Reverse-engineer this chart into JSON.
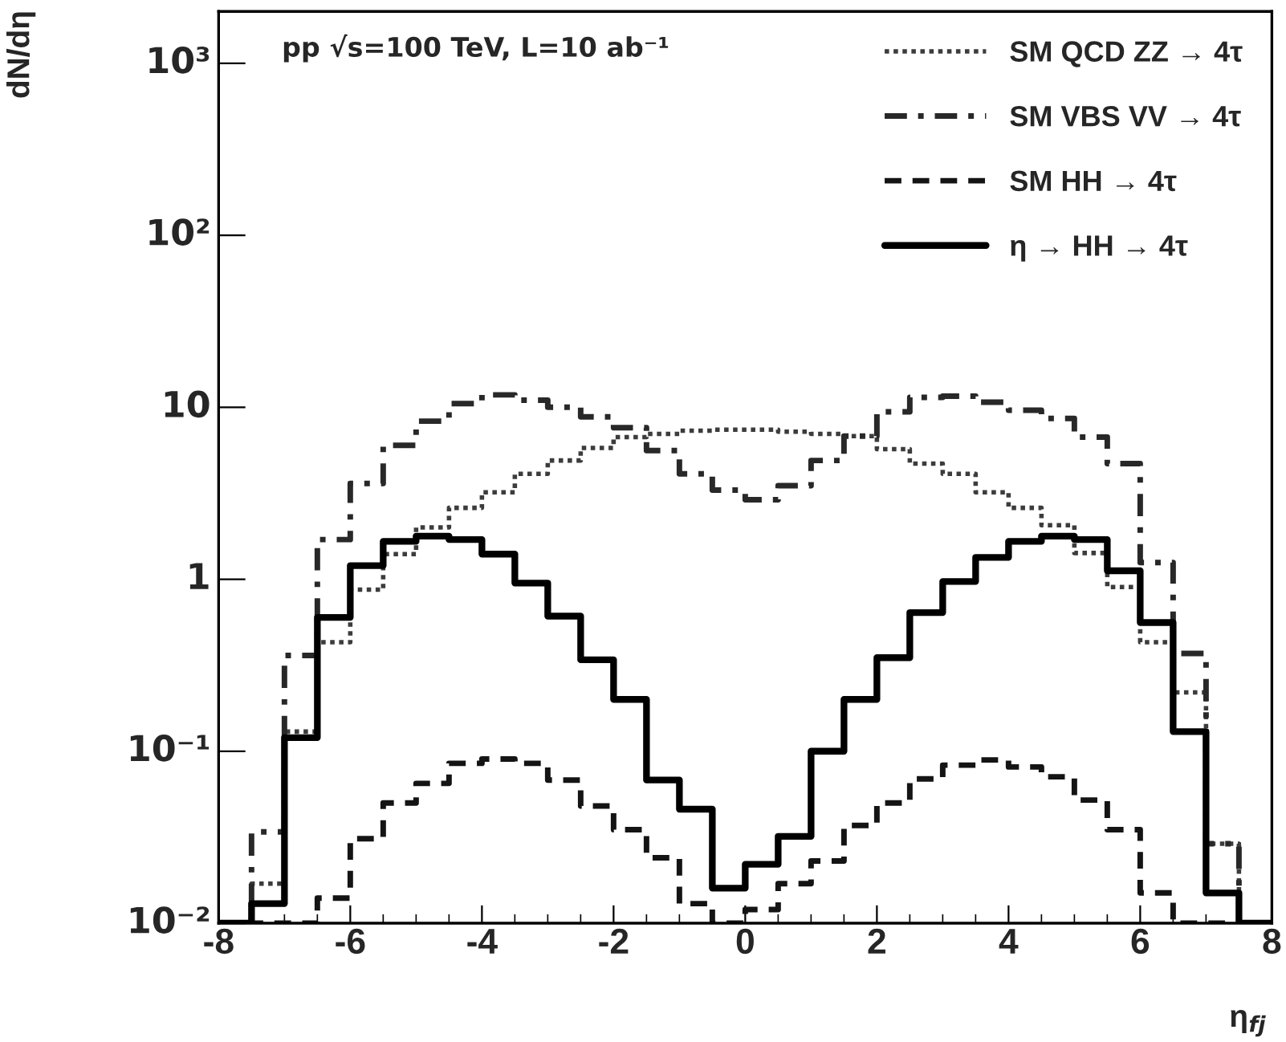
{
  "chart_data": {
    "type": "histogram",
    "xlabel": "η$_{fj}$",
    "ylabel": "dN/dη",
    "annotations": [
      "pp √s=100 TeV, L=10 ab⁻¹"
    ],
    "bins": [
      -8,
      -7.5,
      -7,
      -6.5,
      -6,
      -5.5,
      -5,
      -4.5,
      -4,
      -3.5,
      -3,
      -2.5,
      -2,
      -1.5,
      -1,
      -0.5,
      0,
      0.5,
      1,
      1.5,
      2,
      2.5,
      3,
      3.5,
      4,
      4.5,
      5,
      5.5,
      6,
      6.5,
      7,
      7.5,
      8
    ],
    "series": [
      {
        "name": "SM QCD ZZ → 4τ",
        "color": "#3c3c3c",
        "line_style": "dotted",
        "values": [
          0.01,
          0.017,
          0.13,
          0.43,
          0.87,
          1.4,
          2.0,
          2.6,
          3.2,
          4.1,
          4.9,
          5.8,
          6.7,
          7.0,
          7.3,
          7.4,
          7.4,
          7.2,
          7.0,
          6.8,
          5.7,
          4.7,
          4.1,
          3.2,
          2.6,
          2.06,
          1.42,
          0.9,
          0.43,
          0.22,
          0.029,
          0.01
        ]
      },
      {
        "name": "SM VBS VV → 4τ",
        "color": "#282828",
        "line_style": "dashdot",
        "values": [
          0.01,
          0.034,
          0.36,
          1.7,
          3.6,
          6.0,
          8.3,
          10.5,
          11.8,
          11,
          10,
          8.8,
          7.6,
          5.6,
          4.1,
          3.3,
          2.9,
          3.5,
          4.9,
          6.8,
          9.4,
          11.4,
          11.6,
          10.7,
          9.6,
          8.6,
          6.7,
          4.7,
          1.25,
          0.37,
          0.029,
          0.01
        ]
      },
      {
        "name": "SM HH → 4τ",
        "color": "#141414",
        "line_style": "dashed",
        "values": [
          0.01,
          0.01,
          0.01,
          0.014,
          0.031,
          0.05,
          0.065,
          0.085,
          0.09,
          0.085,
          0.068,
          0.048,
          0.035,
          0.024,
          0.013,
          0.01,
          0.012,
          0.017,
          0.023,
          0.037,
          0.05,
          0.069,
          0.083,
          0.089,
          0.081,
          0.071,
          0.052,
          0.035,
          0.015,
          0.01,
          0.01,
          0.01
        ]
      },
      {
        "name": "η → HH → 4τ",
        "color": "#000000",
        "line_style": "solid",
        "values": [
          0.01,
          0.013,
          0.12,
          0.6,
          1.2,
          1.66,
          1.78,
          1.7,
          1.4,
          0.95,
          0.61,
          0.34,
          0.2,
          0.068,
          0.046,
          0.016,
          0.022,
          0.032,
          0.1,
          0.2,
          0.35,
          0.64,
          0.97,
          1.34,
          1.66,
          1.78,
          1.7,
          1.12,
          0.56,
          0.13,
          0.015,
          0.01
        ]
      }
    ],
    "log": "y",
    "xlim": [
      -8,
      8
    ],
    "ylim": [
      0.01,
      2000
    ],
    "xticks": [
      -8,
      -6,
      -4,
      -2,
      0,
      2,
      4,
      6,
      8
    ],
    "yticks": [
      {
        "value": 0.01,
        "label": "10⁻²"
      },
      {
        "value": 0.1,
        "label": "10⁻¹"
      },
      1,
      10,
      {
        "value": 100,
        "label": "10²"
      },
      {
        "value": 1000,
        "label": "10³"
      }
    ],
    "grid": false,
    "legend": "top right"
  }
}
